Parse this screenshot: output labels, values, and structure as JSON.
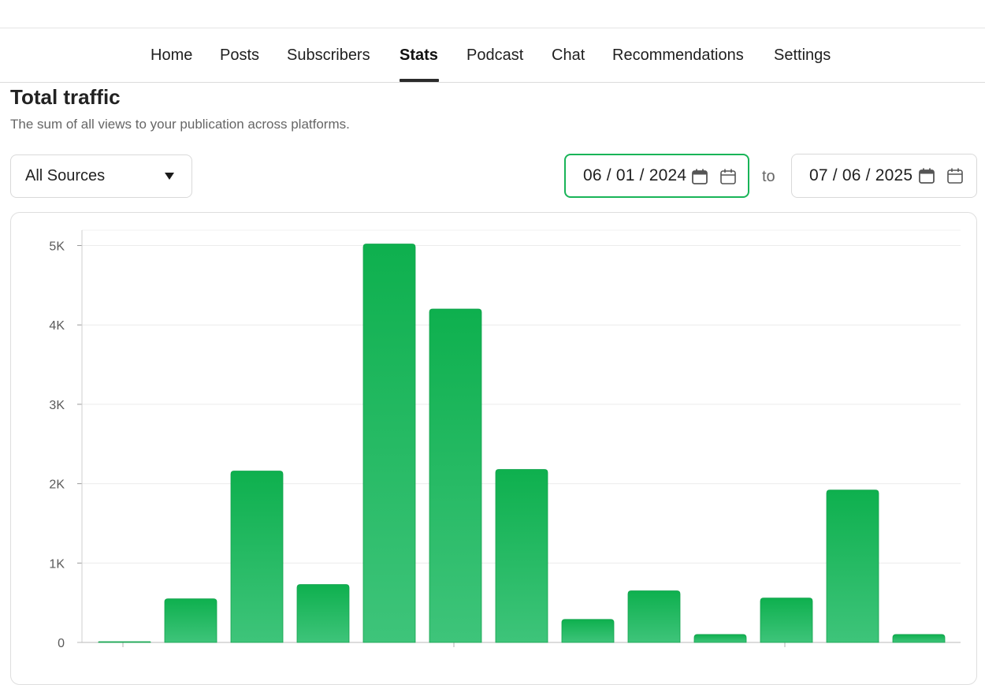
{
  "nav": {
    "tabs": [
      {
        "label": "Home",
        "active": false
      },
      {
        "label": "Posts",
        "active": false
      },
      {
        "label": "Subscribers",
        "active": false
      },
      {
        "label": "Stats",
        "active": true
      },
      {
        "label": "Podcast",
        "active": false
      },
      {
        "label": "Chat",
        "active": false
      },
      {
        "label": "Recommendations",
        "active": false
      },
      {
        "label": "Settings",
        "active": false
      }
    ]
  },
  "header": {
    "title": "Total traffic",
    "subtitle": "The sum of all views to your publication across platforms."
  },
  "filters": {
    "source_value": "All Sources",
    "start_date": "06 / 01 / 2024",
    "to_label": "to",
    "end_date": "07 / 06 / 2025",
    "start_icon": "calendar-icon",
    "end_icon": "calendar-icon",
    "dropdown_icon": "caret-down-icon"
  },
  "colors": {
    "accent": "#19b458",
    "bar_top": "#0eb04e",
    "bar_bottom": "#3ec47a"
  },
  "chart_data": {
    "type": "bar",
    "title": "",
    "xlabel": "",
    "ylabel": "",
    "ylim": [
      0,
      5200
    ],
    "yticks": [
      {
        "value": 0,
        "label": "0"
      },
      {
        "value": 1000,
        "label": "1K"
      },
      {
        "value": 2000,
        "label": "2K"
      },
      {
        "value": 3000,
        "label": "3K"
      },
      {
        "value": 4000,
        "label": "4K"
      },
      {
        "value": 5000,
        "label": "5K"
      }
    ],
    "grid": true,
    "values": [
      10,
      550,
      2160,
      730,
      5020,
      4200,
      2180,
      290,
      650,
      100,
      560,
      1920,
      100
    ]
  }
}
